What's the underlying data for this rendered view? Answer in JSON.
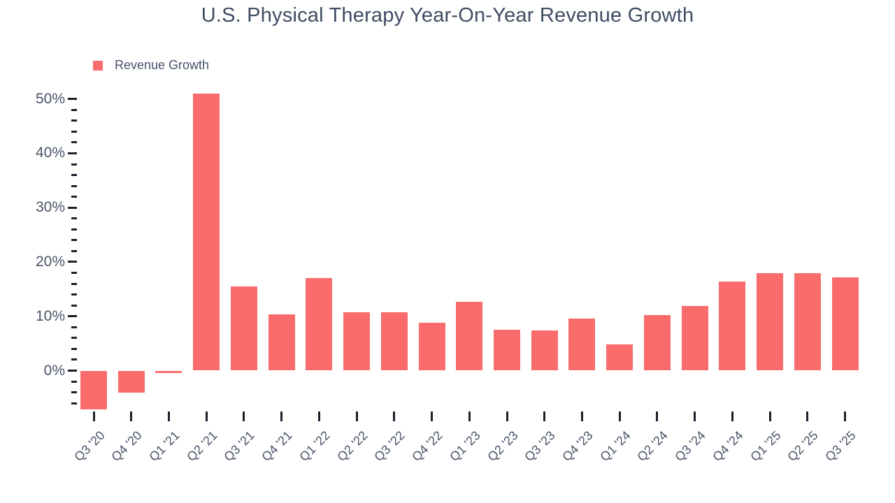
{
  "title": "U.S. Physical Therapy Year-On-Year Revenue Growth",
  "legend": {
    "items": [
      {
        "label": "Revenue Growth",
        "color": "#fa6c6c"
      }
    ]
  },
  "colors": {
    "bar": "#fa6c6c",
    "title_text": "#404c63",
    "axis_text": "#4a5469",
    "tick": "#1a202c",
    "background": "#ffffff"
  },
  "chart_data": {
    "type": "bar",
    "title": "U.S. Physical Therapy Year-On-Year Revenue Growth",
    "categories": [
      "Q3 '20",
      "Q4 '20",
      "Q1 '21",
      "Q2 '21",
      "Q3 '21",
      "Q4 '21",
      "Q1 '22",
      "Q2 '22",
      "Q3 '22",
      "Q4 '22",
      "Q1 '23",
      "Q2 '23",
      "Q3 '23",
      "Q4 '23",
      "Q1 '24",
      "Q2 '24",
      "Q3 '24",
      "Q4 '24",
      "Q1 '25",
      "Q2 '25",
      "Q3 '25"
    ],
    "series": [
      {
        "name": "Revenue Growth",
        "values": [
          -7.1,
          -4.0,
          -0.4,
          51.0,
          15.5,
          10.4,
          17.0,
          10.7,
          10.8,
          8.8,
          12.7,
          7.5,
          7.4,
          9.6,
          4.8,
          10.2,
          11.9,
          16.4,
          18.0,
          18.0,
          17.2
        ]
      }
    ],
    "xlabel": "",
    "ylabel": "",
    "unit": "%",
    "y_axis": {
      "major_ticks": [
        0,
        10,
        20,
        30,
        40,
        50
      ],
      "major_tick_labels": [
        "0%",
        "10%",
        "20%",
        "30%",
        "40%",
        "50%"
      ],
      "minor_tick_step": 2,
      "minor_tick_min": -6,
      "minor_tick_max": 48,
      "min": -7.5,
      "max": 51.5
    },
    "grid": false,
    "legend_position": "top-left"
  }
}
